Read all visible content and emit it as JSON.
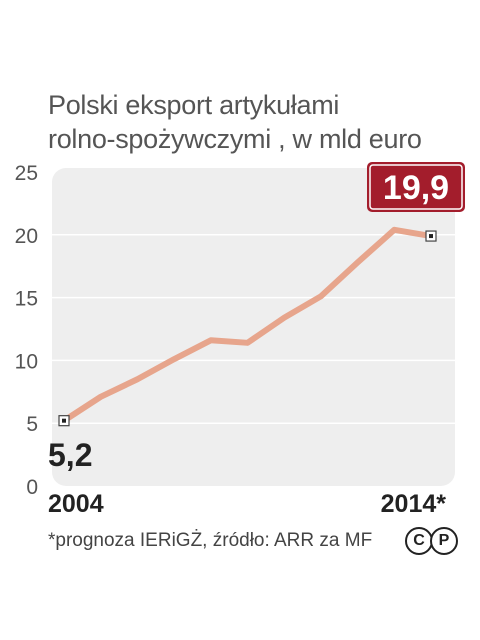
{
  "title_lines": [
    "Polski eksport artykułami",
    "rolno-spożywczymi , w mld euro"
  ],
  "footnote": "*prognoza IERiGŻ, źródło: ARR za MF",
  "license_icons": [
    "C",
    "P"
  ],
  "colors": {
    "line": "#e7a58c",
    "plot_bg": "#eeeeee",
    "highlight_badge": "#a31d2c",
    "text_dark": "#222222",
    "text_mid": "#555555"
  },
  "chart_data": {
    "type": "line",
    "title": "Polski eksport artykułami rolno-spożywczymi , w mld euro",
    "x_labels": [
      "2004",
      "2014*"
    ],
    "x": [
      2004,
      2005,
      2006,
      2007,
      2008,
      2009,
      2010,
      2011,
      2012,
      2013,
      2014
    ],
    "values": [
      5.2,
      7.1,
      8.5,
      10.1,
      11.6,
      11.4,
      13.4,
      15.1,
      17.8,
      20.4,
      19.9
    ],
    "xlim": [
      2004,
      2014
    ],
    "ylim": [
      0,
      25
    ],
    "yticks": [
      0,
      5,
      10,
      15,
      20,
      25
    ],
    "grid": true,
    "start_label": "5,2",
    "end_label": "19,9",
    "end_label_style": "badge"
  }
}
